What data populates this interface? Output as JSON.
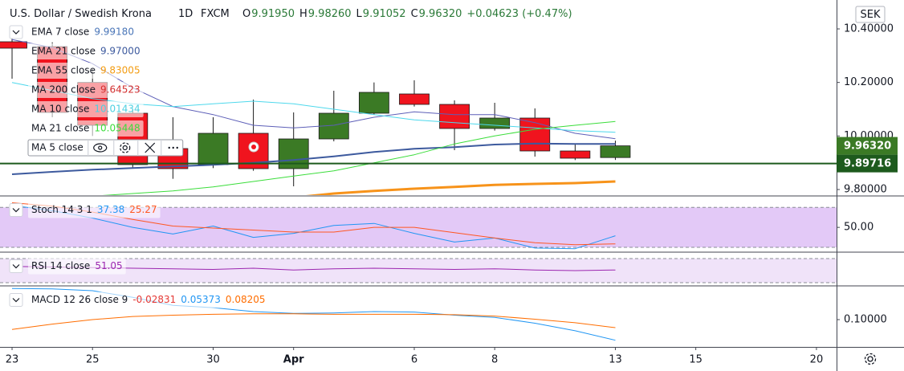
{
  "header": {
    "symbol": "U.S. Dollar / Swedish Krona",
    "interval": "1D",
    "source": "FXCM",
    "ohlc": [
      {
        "key": "O",
        "value": "9.91950"
      },
      {
        "key": "H",
        "value": "9.98260"
      },
      {
        "key": "L",
        "value": "9.91052"
      },
      {
        "key": "C",
        "value": "9.96320"
      }
    ],
    "change": "+0.04623 (+0.47%)"
  },
  "currency": "SEK",
  "chart_data": [
    {
      "type": "candlestick",
      "x": [
        0,
        1,
        2,
        3,
        4,
        5,
        6,
        7,
        8,
        9,
        10,
        11,
        12,
        13,
        14,
        15
      ],
      "open": [
        10.352,
        10.334,
        10.2,
        10.085,
        9.953,
        9.893,
        10.01,
        9.878,
        9.989,
        10.085,
        10.157,
        10.118,
        10.028,
        10.067,
        9.944,
        9.9195
      ],
      "high": [
        10.388,
        10.35,
        10.25,
        10.1,
        10.07,
        10.07,
        10.136,
        10.088,
        10.169,
        10.2,
        10.208,
        10.133,
        10.124,
        10.103,
        9.971,
        9.9826
      ],
      "low": [
        10.214,
        10.07,
        10.0,
        9.88,
        9.84,
        9.88,
        9.87,
        9.812,
        9.98,
        10.08,
        10.11,
        9.947,
        10.02,
        9.923,
        9.91,
        9.91052
      ],
      "close": [
        10.328,
        10.088,
        10.04,
        9.893,
        9.878,
        10.01,
        9.878,
        9.989,
        10.085,
        10.163,
        10.118,
        10.028,
        10.067,
        9.944,
        9.917,
        9.9632
      ],
      "up_color": "#3b7a25",
      "down_color": "#f0141e",
      "xlim": [
        -0.24,
        20.5
      ],
      "xticks": [
        {
          "value": 0,
          "label": "23"
        },
        {
          "value": 2,
          "label": "25"
        },
        {
          "value": 5,
          "label": "30"
        },
        {
          "value": 7,
          "label": "Apr"
        },
        {
          "value": 10,
          "label": "6"
        },
        {
          "value": 12,
          "label": "8"
        },
        {
          "value": 15,
          "label": "13"
        },
        {
          "value": 17,
          "label": "15"
        },
        {
          "value": 20,
          "label": "20"
        }
      ],
      "ylim": [
        9.779,
        10.508
      ],
      "yticks": [
        {
          "value": 10.4,
          "label": "10.40000"
        },
        {
          "value": 10.2,
          "label": "10.20000"
        },
        {
          "value": 10.0,
          "label": "10.00000"
        },
        {
          "value": 9.8,
          "label": "9.80000"
        }
      ],
      "series": [
        {
          "name": "EMA 7 close",
          "color": "#5d5fb8",
          "width": 1,
          "values": [
            10.36,
            10.33,
            10.27,
            10.18,
            10.11,
            10.08,
            10.04,
            10.03,
            10.04,
            10.07,
            10.09,
            10.08,
            10.08,
            10.05,
            10.01,
            9.99
          ]
        },
        {
          "name": "MA 10 close",
          "color": "#4dd8ec",
          "width": 1,
          "values": [
            10.2,
            10.17,
            10.14,
            10.12,
            10.11,
            10.12,
            10.13,
            10.12,
            10.1,
            10.08,
            10.06,
            10.05,
            10.04,
            10.03,
            10.02,
            10.014
          ]
        },
        {
          "name": "EMA 21 close",
          "color": "#3d5a9e",
          "width": 2,
          "values": [
            9.857,
            9.866,
            9.874,
            9.88,
            9.886,
            9.892,
            9.9,
            9.91,
            9.924,
            9.94,
            9.952,
            9.958,
            9.968,
            9.972,
            9.97,
            9.97
          ]
        },
        {
          "name": "MA 21 close",
          "color": "#3bdd3b",
          "width": 1,
          "values": [
            null,
            9.77,
            9.775,
            9.785,
            9.795,
            9.81,
            9.83,
            9.85,
            9.87,
            9.9,
            9.93,
            9.97,
            10.0,
            10.025,
            10.04,
            10.054
          ]
        },
        {
          "name": "EMA 55 close",
          "color": "#f7931a",
          "width": 3,
          "values": [
            null,
            null,
            null,
            null,
            null,
            null,
            null,
            9.77,
            9.785,
            9.795,
            9.803,
            9.81,
            9.817,
            9.821,
            9.824,
            9.83
          ]
        }
      ],
      "legend": [
        {
          "label": "EMA 7 close",
          "values": [
            {
              "text": "9.99180",
              "color": "#4a76b8"
            }
          ]
        },
        {
          "label": "EMA 21 close",
          "values": [
            {
              "text": "9.97000",
              "color": "#3d5a9e"
            }
          ]
        },
        {
          "label": "EMA 55 close",
          "values": [
            {
              "text": "9.83005",
              "color": "#f39c12"
            }
          ]
        },
        {
          "label": "MA 200 close",
          "values": [
            {
              "text": "9.64523",
              "color": "#d32f2f"
            }
          ]
        },
        {
          "label": "MA 10 close",
          "values": [
            {
              "text": "10.01434",
              "color": "#4dd0e1"
            }
          ]
        },
        {
          "label": "MA 21 close",
          "values": [
            {
              "text": "10.05448",
              "color": "#3bdd3b"
            }
          ]
        },
        {
          "label": "MA 5 close",
          "values": []
        }
      ],
      "price_labels": [
        {
          "value": 9.9632,
          "label": "9.96320",
          "color": "#3b7a25",
          "line": false
        },
        {
          "value": 9.89716,
          "label": "9.89716",
          "color": "#1d5a1d",
          "line": true
        }
      ]
    },
    {
      "type": "line",
      "x": [
        0,
        1,
        2,
        3,
        4,
        5,
        6,
        7,
        8,
        9,
        10,
        11,
        12,
        13,
        14,
        15
      ],
      "ylim": [
        14,
        96
      ],
      "yticks": [
        {
          "value": 50,
          "label": "50.00"
        }
      ],
      "levels": [
        80,
        20
      ],
      "band_color": "#dcbcf5",
      "series": [
        {
          "name": "%K",
          "color": "#2196f3",
          "width": 1,
          "values": [
            83,
            75,
            64,
            50,
            40,
            52,
            35,
            41,
            53,
            56,
            41,
            28,
            34,
            19,
            18,
            37.38
          ]
        },
        {
          "name": "%D",
          "color": "#ff5722",
          "width": 1,
          "values": [
            87,
            82,
            73,
            62,
            52,
            49,
            46,
            43,
            43,
            50,
            50,
            42,
            34,
            27,
            24,
            25.27
          ]
        }
      ],
      "legend": [
        {
          "label": "Stoch 14 3 1",
          "values": [
            {
              "text": "37.38",
              "color": "#2196f3"
            },
            {
              "text": "25.27",
              "color": "#ff5722"
            }
          ]
        }
      ]
    },
    {
      "type": "line",
      "x": [
        0,
        1,
        2,
        3,
        4,
        5,
        6,
        7,
        8,
        9,
        10,
        11,
        12,
        13,
        14,
        15
      ],
      "ylim": [
        26,
        79.3
      ],
      "levels": [
        70,
        30
      ],
      "band_color": "#ecdcf8",
      "series": [
        {
          "name": "RSI",
          "color": "#9c27b0",
          "width": 1,
          "values": [
            57,
            56,
            55,
            54,
            53,
            52,
            54,
            51,
            53,
            54,
            53,
            52,
            53,
            51,
            50,
            51.05
          ]
        }
      ],
      "legend": [
        {
          "label": "RSI 14 close",
          "values": [
            {
              "text": "51.05",
              "color": "#9c27b0"
            }
          ]
        }
      ]
    },
    {
      "type": "line",
      "x": [
        0,
        1,
        2,
        3,
        4,
        5,
        6,
        7,
        8,
        9,
        10,
        11,
        12,
        13,
        14,
        15
      ],
      "ylim": [
        0.0387,
        0.174
      ],
      "yticks": [
        {
          "value": 0.1,
          "label": "0.10000"
        }
      ],
      "series": [
        {
          "name": "MACD",
          "color": "#2196f3",
          "width": 1,
          "values": [
            0.17,
            0.169,
            0.165,
            0.15,
            0.132,
            0.127,
            0.118,
            0.114,
            0.115,
            0.118,
            0.117,
            0.11,
            0.105,
            0.092,
            0.075,
            0.0537
          ]
        },
        {
          "name": "Signal",
          "color": "#ff6d00",
          "width": 1,
          "values": [
            0.078,
            0.09,
            0.1,
            0.107,
            0.11,
            0.112,
            0.113,
            0.113,
            0.112,
            0.112,
            0.112,
            0.111,
            0.108,
            0.101,
            0.093,
            0.08205
          ]
        }
      ],
      "legend": [
        {
          "label": "MACD 12 26 close 9",
          "values": [
            {
              "text": "-0.02831",
              "color": "#e53935"
            },
            {
              "text": "0.05373",
              "color": "#2196f3"
            },
            {
              "text": "0.08205",
              "color": "#ff6d00"
            }
          ]
        }
      ]
    }
  ]
}
